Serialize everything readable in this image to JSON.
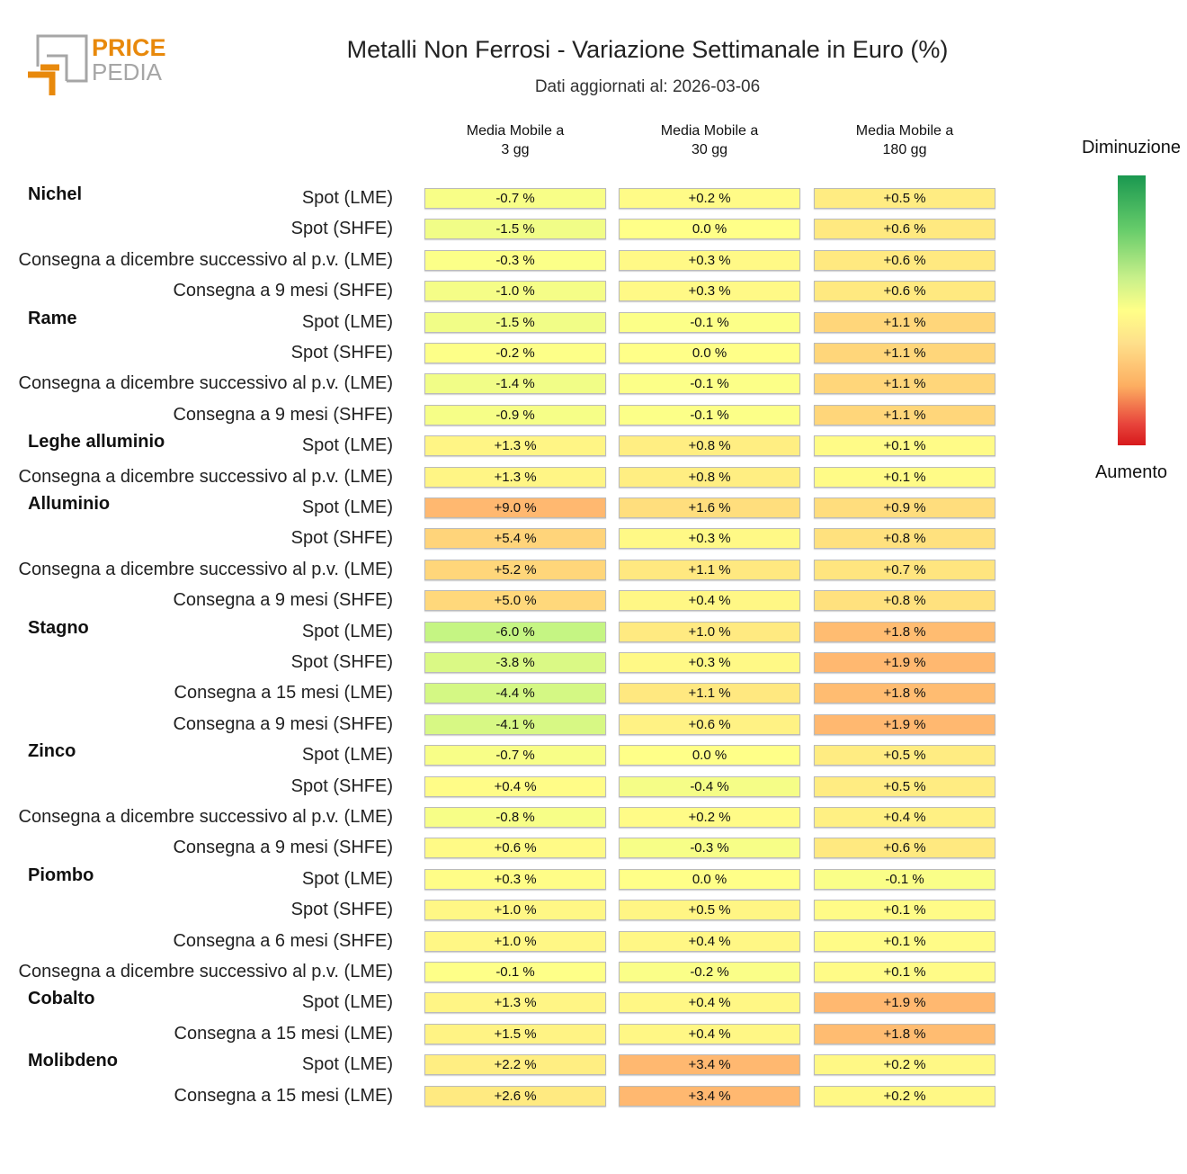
{
  "logo": {
    "line1": "PRICE",
    "line2": "PEDIA"
  },
  "title": "Metalli Non Ferrosi - Variazione Settimanale in Euro (%)",
  "subtitle": "Dati aggiornati al: 2026-03-06",
  "legend": {
    "top": "Diminuzione",
    "bottom": "Aumento"
  },
  "chart_data": {
    "type": "table",
    "title": "Metalli Non Ferrosi - Variazione Settimanale in Euro (%)",
    "columns": [
      [
        "Media Mobile a",
        "3 gg"
      ],
      [
        "Media Mobile a",
        "30 gg"
      ],
      [
        "Media Mobile a",
        "180 gg"
      ]
    ],
    "colors": {
      "neutral": "#ffff88",
      "up": "#ffb870",
      "down": "#a8f080"
    },
    "rows": [
      {
        "group": "Nichel",
        "label": "Spot (LME)",
        "values": [
          -0.7,
          0.2,
          0.5
        ]
      },
      {
        "group": "",
        "label": "Spot (SHFE)",
        "values": [
          -1.5,
          0.0,
          0.6
        ]
      },
      {
        "group": "",
        "label": "Consegna a dicembre successivo al p.v. (LME)",
        "values": [
          -0.3,
          0.3,
          0.6
        ]
      },
      {
        "group": "",
        "label": "Consegna a 9 mesi (SHFE)",
        "values": [
          -1.0,
          0.3,
          0.6
        ]
      },
      {
        "group": "Rame",
        "label": "Spot (LME)",
        "values": [
          -1.5,
          -0.1,
          1.1
        ]
      },
      {
        "group": "",
        "label": "Spot (SHFE)",
        "values": [
          -0.2,
          0.0,
          1.1
        ]
      },
      {
        "group": "",
        "label": "Consegna a dicembre successivo al p.v. (LME)",
        "values": [
          -1.4,
          -0.1,
          1.1
        ]
      },
      {
        "group": "",
        "label": "Consegna a 9 mesi (SHFE)",
        "values": [
          -0.9,
          -0.1,
          1.1
        ]
      },
      {
        "group": "Leghe alluminio",
        "label": "Spot (LME)",
        "values": [
          1.3,
          0.8,
          0.1
        ]
      },
      {
        "group": "",
        "label": "Consegna a dicembre successivo al p.v. (LME)",
        "values": [
          1.3,
          0.8,
          0.1
        ]
      },
      {
        "group": "Alluminio",
        "label": "Spot (LME)",
        "values": [
          9.0,
          1.6,
          0.9
        ]
      },
      {
        "group": "",
        "label": "Spot (SHFE)",
        "values": [
          5.4,
          0.3,
          0.8
        ]
      },
      {
        "group": "",
        "label": "Consegna a dicembre successivo al p.v. (LME)",
        "values": [
          5.2,
          1.1,
          0.7
        ]
      },
      {
        "group": "",
        "label": "Consegna a 9 mesi (SHFE)",
        "values": [
          5.0,
          0.4,
          0.8
        ]
      },
      {
        "group": "Stagno",
        "label": "Spot (LME)",
        "values": [
          -6.0,
          1.0,
          1.8
        ]
      },
      {
        "group": "",
        "label": "Spot (SHFE)",
        "values": [
          -3.8,
          0.3,
          1.9
        ]
      },
      {
        "group": "",
        "label": "Consegna a 15 mesi (LME)",
        "values": [
          -4.4,
          1.1,
          1.8
        ]
      },
      {
        "group": "",
        "label": "Consegna a 9 mesi (SHFE)",
        "values": [
          -4.1,
          0.6,
          1.9
        ]
      },
      {
        "group": "Zinco",
        "label": "Spot (LME)",
        "values": [
          -0.7,
          0.0,
          0.5
        ]
      },
      {
        "group": "",
        "label": "Spot (SHFE)",
        "values": [
          0.4,
          -0.4,
          0.5
        ]
      },
      {
        "group": "",
        "label": "Consegna a dicembre successivo al p.v. (LME)",
        "values": [
          -0.8,
          0.2,
          0.4
        ]
      },
      {
        "group": "",
        "label": "Consegna a 9 mesi (SHFE)",
        "values": [
          0.6,
          -0.3,
          0.6
        ]
      },
      {
        "group": "Piombo",
        "label": "Spot (LME)",
        "values": [
          0.3,
          0.0,
          -0.1
        ]
      },
      {
        "group": "",
        "label": "Spot (SHFE)",
        "values": [
          1.0,
          0.5,
          0.1
        ]
      },
      {
        "group": "",
        "label": "Consegna a 6 mesi (SHFE)",
        "values": [
          1.0,
          0.4,
          0.1
        ]
      },
      {
        "group": "",
        "label": "Consegna a dicembre successivo al p.v. (LME)",
        "values": [
          -0.1,
          -0.2,
          0.1
        ]
      },
      {
        "group": "Cobalto",
        "label": "Spot (LME)",
        "values": [
          1.3,
          0.4,
          1.9
        ]
      },
      {
        "group": "",
        "label": "Consegna a 15 mesi (LME)",
        "values": [
          1.5,
          0.4,
          1.8
        ]
      },
      {
        "group": "Molibdeno",
        "label": "Spot (LME)",
        "values": [
          2.2,
          3.4,
          0.2
        ]
      },
      {
        "group": "",
        "label": "Consegna a 15 mesi (LME)",
        "values": [
          2.6,
          3.4,
          0.2
        ]
      }
    ]
  }
}
